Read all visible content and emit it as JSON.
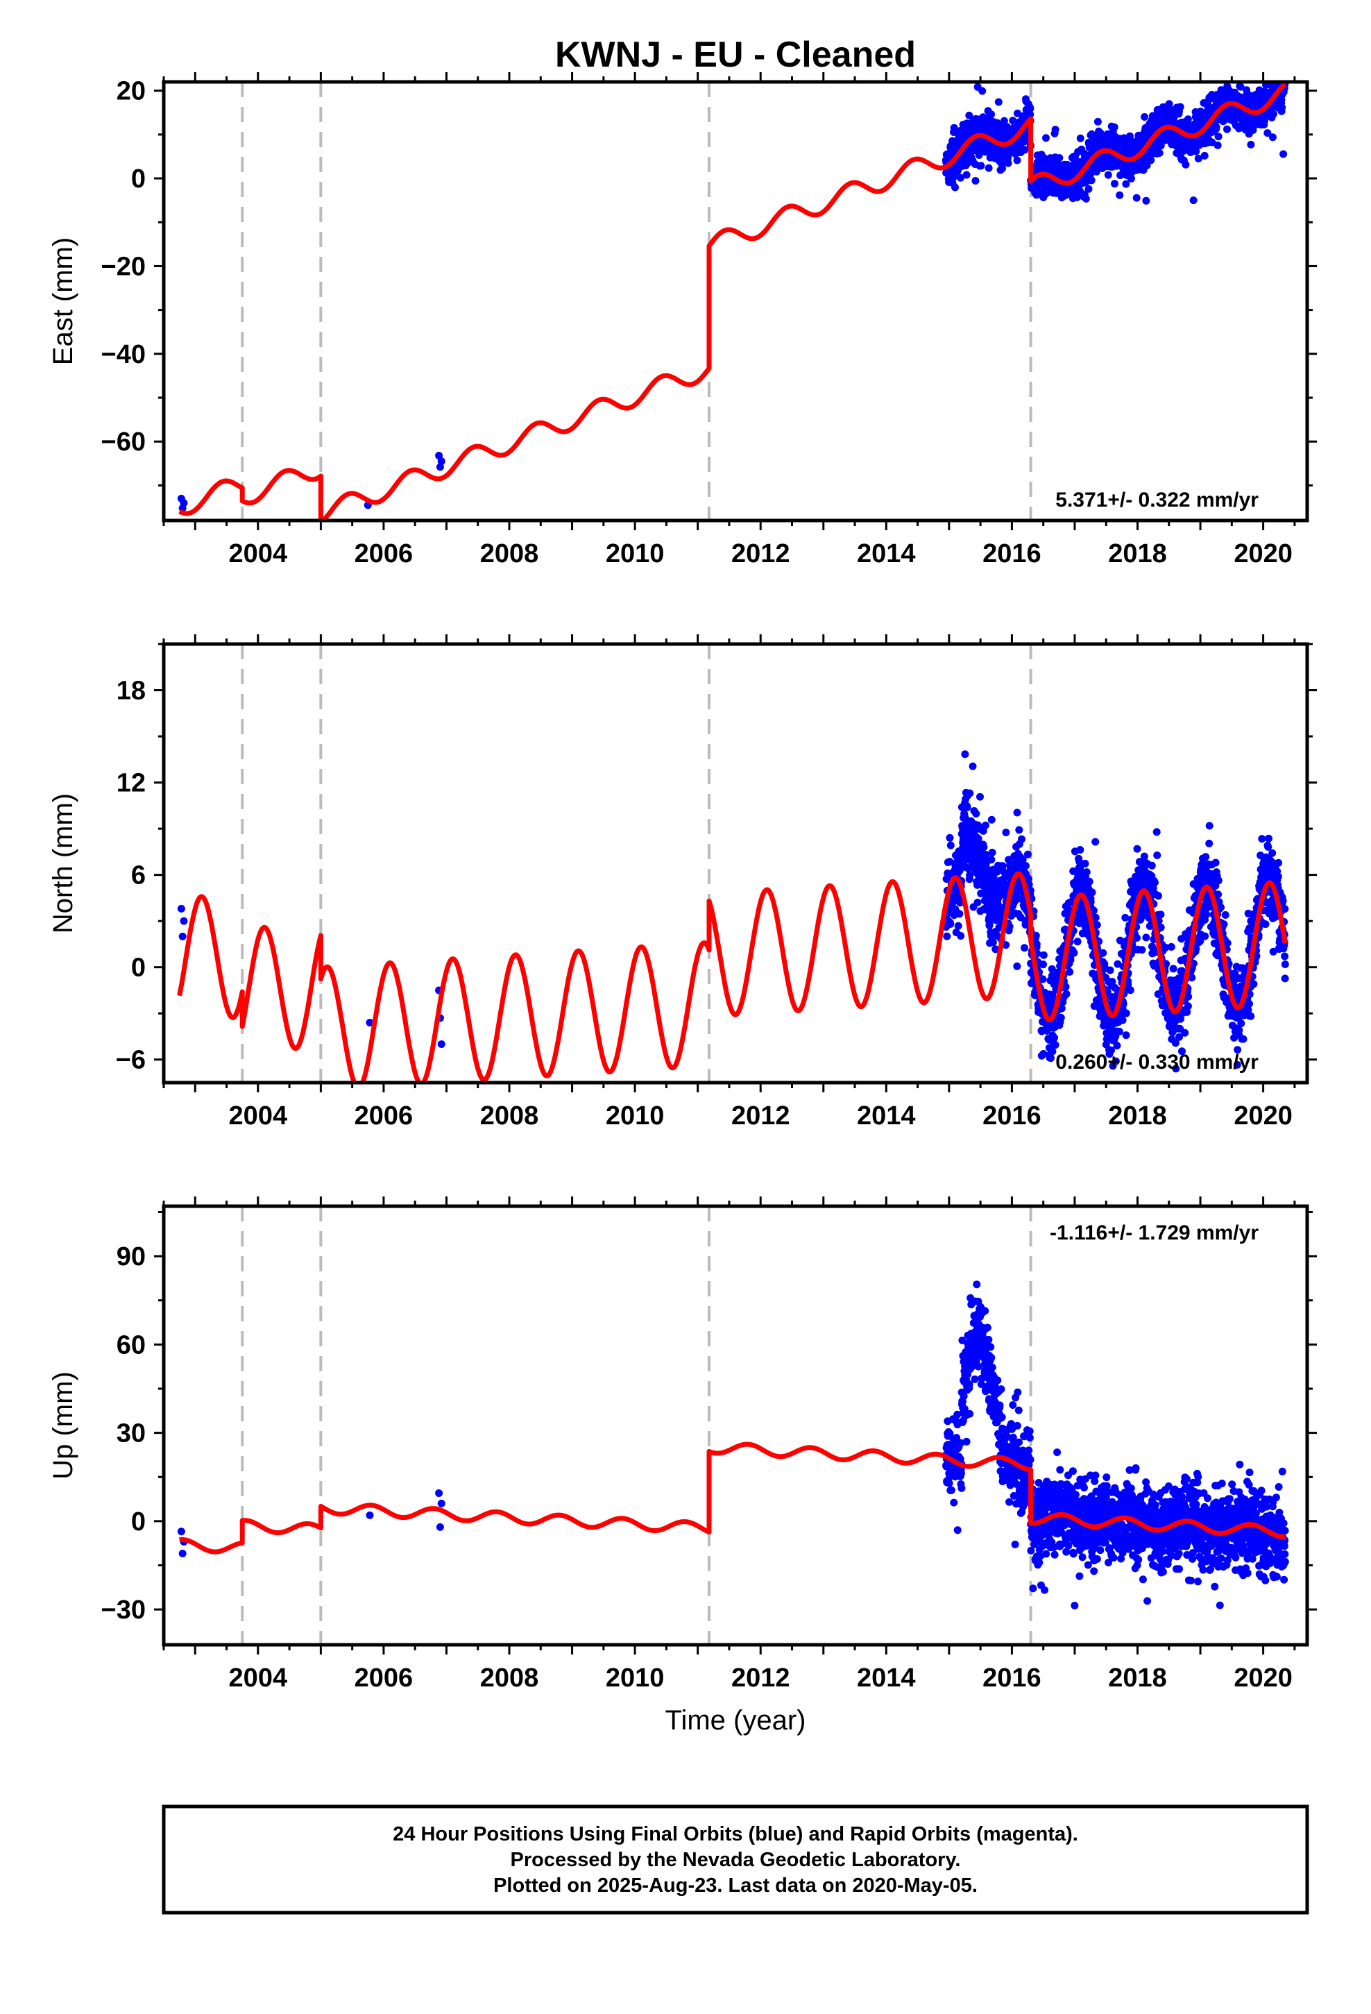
{
  "chart_data": [
    {
      "type": "scatter",
      "panel": "east",
      "title": "KWNJ  - EU - Cleaned",
      "xlabel": "",
      "ylabel": "East (mm)",
      "xlim": [
        2002.5,
        2020.7
      ],
      "ylim": [
        -78,
        22
      ],
      "xticks": [
        2004,
        2006,
        2008,
        2010,
        2012,
        2014,
        2016,
        2018,
        2020
      ],
      "yticks": [
        -60,
        -40,
        -20,
        0,
        20
      ],
      "rate_label": "5.371+/- 0.322 mm/yr",
      "grid": false,
      "breaks": [
        2003.75,
        2005.0,
        2011.18,
        2016.3
      ],
      "model": {
        "color": "#ff0000",
        "start_year": 2002.75,
        "start_values": [
          -75.0,
          -72.6,
          -76.5,
          -15.4,
          -2.1
        ],
        "slope": 5.371,
        "annual_amplitude": 2.2,
        "annual_phase": 0.18
      },
      "observations": {
        "color": "#0000ff",
        "isolated": [
          {
            "x": 2002.78,
            "y": -73.0
          },
          {
            "x": 2002.8,
            "y": -75.2
          },
          {
            "x": 2002.82,
            "y": -74.0
          },
          {
            "x": 2005.75,
            "y": -74.5
          },
          {
            "x": 2006.88,
            "y": -63.2
          },
          {
            "x": 2006.9,
            "y": -65.8
          },
          {
            "x": 2006.92,
            "y": -64.5
          }
        ],
        "dense_range": [
          2014.95,
          2020.35
        ],
        "noise": 2.3,
        "outlier_scale": 2.5
      }
    },
    {
      "type": "scatter",
      "panel": "north",
      "title": "",
      "xlabel": "",
      "ylabel": "North (mm)",
      "xlim": [
        2002.5,
        2020.7
      ],
      "ylim": [
        -7.5,
        21
      ],
      "xticks": [
        2004,
        2006,
        2008,
        2010,
        2012,
        2014,
        2016,
        2018,
        2020
      ],
      "yticks": [
        -6,
        0,
        6,
        12,
        18
      ],
      "rate_label": "0.260+/- 0.330 mm/yr",
      "grid": false,
      "breaks": [
        2003.75,
        2005.0,
        2011.18,
        2016.3
      ],
      "model": {
        "color": "#ff0000",
        "start_year": 2002.75,
        "start_values": [
          0.5,
          -1.5,
          -4.0,
          0.8,
          0.5
        ],
        "slope": 0.26,
        "annual_amplitude": 4.0,
        "annual_phase": 0.85
      },
      "observations": {
        "color": "#0000ff",
        "isolated": [
          {
            "x": 2002.78,
            "y": 3.8
          },
          {
            "x": 2002.8,
            "y": 2.0
          },
          {
            "x": 2002.82,
            "y": 3.0
          },
          {
            "x": 2005.78,
            "y": -3.6
          },
          {
            "x": 2006.88,
            "y": -1.5
          },
          {
            "x": 2006.9,
            "y": -3.3
          },
          {
            "x": 2006.92,
            "y": -5.0
          }
        ],
        "dense_range": [
          2014.95,
          2020.35
        ],
        "noise": 1.3,
        "outlier_scale": 2.2,
        "anomaly": {
          "start": 2015.2,
          "end": 2015.9,
          "peak_year": 2015.5,
          "peak": 8.0
        }
      }
    },
    {
      "type": "scatter",
      "panel": "up",
      "title": "",
      "xlabel": "Time (year)",
      "ylabel": "Up (mm)",
      "xlim": [
        2002.5,
        2020.7
      ],
      "ylim": [
        -42,
        107
      ],
      "xticks": [
        2004,
        2006,
        2008,
        2010,
        2012,
        2014,
        2016,
        2018,
        2020
      ],
      "yticks": [
        -30,
        0,
        30,
        60,
        90
      ],
      "rate_label": "-1.116+/- 1.729 mm/yr",
      "grid": false,
      "breaks": [
        2003.75,
        2005.0,
        2011.18,
        2016.3
      ],
      "model": {
        "color": "#ff0000",
        "start_year": 2002.75,
        "start_values": [
          -8.0,
          -1.5,
          4.5,
          25.0,
          1.0
        ],
        "slope": -1.116,
        "annual_amplitude": 1.8,
        "annual_phase": 0.55
      },
      "observations": {
        "color": "#0000ff",
        "isolated": [
          {
            "x": 2002.78,
            "y": -3.5
          },
          {
            "x": 2002.8,
            "y": -11.0
          },
          {
            "x": 2002.82,
            "y": -7.0
          },
          {
            "x": 2005.78,
            "y": 2.0
          },
          {
            "x": 2006.88,
            "y": 9.5
          },
          {
            "x": 2006.9,
            "y": -2.0
          },
          {
            "x": 2006.92,
            "y": 6.0
          }
        ],
        "dense_range": [
          2014.95,
          2020.35
        ],
        "noise": 6.5,
        "outlier_scale": 2.0,
        "anomaly": {
          "start": 2015.2,
          "end": 2015.85,
          "peak_year": 2015.45,
          "peak": 45.0
        }
      }
    }
  ],
  "footer": {
    "lines": [
      "24 Hour Positions Using Final Orbits (blue) and Rapid Orbits (magenta).",
      "Processed by the Nevada Geodetic Laboratory.",
      "Plotted on 2025-Aug-23. Last data on 2020-May-05."
    ]
  }
}
